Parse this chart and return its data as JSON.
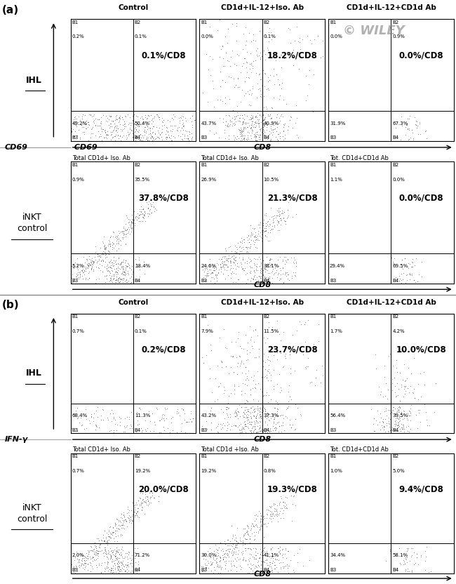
{
  "panel_a": {
    "title": "(a)",
    "row1_title": "IHL",
    "row2_title": "iNKT\ncontrol",
    "yaxis_label": "CD69",
    "col_titles": [
      "Control",
      "CD1d+IL-12+Iso. Ab",
      "CD1d+IL-12+CD1d Ab"
    ],
    "row2_subtitles": [
      "Total CD1d+ Iso. Ab",
      "Total CD1d+ Iso. Ab",
      "Tot. CD1d+CD1d Ab"
    ],
    "row1_main_labels": [
      "0.1%/CD8",
      "18.2%/CD8",
      "0.0%/CD8"
    ],
    "row2_main_labels": [
      "37.8%/CD8",
      "21.3%/CD8",
      "0.0%/CD8"
    ],
    "row1_quadrant_labels": [
      [
        "B1\n0.2%",
        "B2\n0.1%",
        "B3\n49.2%",
        "B4\n50.4%"
      ],
      [
        "B1\n0.0%",
        "B2\n0.1%",
        "B3\n43.7%",
        "B4\n40.9%"
      ],
      [
        "B1\n0.0%",
        "B2\n0.9%",
        "B3\n31.9%",
        "B4\n67.3%"
      ]
    ],
    "row2_quadrant_labels": [
      [
        "B1\n0.9%",
        "B2\n35.5%",
        "B3\n5.2%",
        "B4\n18.4%"
      ],
      [
        "B1\n26.9%",
        "B2\n10.5%",
        "B3\n24.6%",
        "B4\n38.1%"
      ],
      [
        "B1\n1.1%",
        "B2\n0.0%",
        "B3\n29.4%",
        "B4\n69.5%"
      ]
    ],
    "xaxis_label": "CD8"
  },
  "panel_b": {
    "title": "(b)",
    "row1_title": "IHL",
    "row2_title": "iNKT\ncontrol",
    "yaxis_label": "IFN-γ",
    "col_titles": [
      "Control",
      "CD1d+IL-12+Iso. Ab",
      "CD1d+IL-12+CD1d Ab"
    ],
    "row2_subtitles": [
      "Total CD1d+ Iso. Ab",
      "Total CD1d +Iso. Ab",
      "Tot. CD1d+CD1d Ab"
    ],
    "row1_main_labels": [
      "0.2%/CD8",
      "23.7%/CD8",
      "10.0%/CD8"
    ],
    "row2_main_labels": [
      "20.0%/CD8",
      "19.3%/CD8",
      "9.4%/CD8"
    ],
    "row1_quadrant_labels": [
      [
        "B1\n0.7%",
        "B2\n0.1%",
        "B3\n68.4%",
        "B4\n11.3%"
      ],
      [
        "B1\n7.9%",
        "B2\n11.5%",
        "B3\n43.2%",
        "B4\n37.3%"
      ],
      [
        "B1\n1.7%",
        "B2\n4.2%",
        "B3\n56.4%",
        "B4\n39.5%"
      ]
    ],
    "row2_quadrant_labels": [
      [
        "B1\n0.7%",
        "B2\n19.2%",
        "B3\n2.0%",
        "B4\n71.2%"
      ],
      [
        "B1\n19.2%",
        "B2\n0.8%",
        "B3\n30.0%",
        "B4\n41.1%"
      ],
      [
        "B1\n1.0%",
        "B2\n5.0%",
        "B3\n34.4%",
        "B4\n58.1%"
      ]
    ],
    "xaxis_label": "CD8"
  },
  "watermark": "© WILEY",
  "bg_color": "#ffffff"
}
